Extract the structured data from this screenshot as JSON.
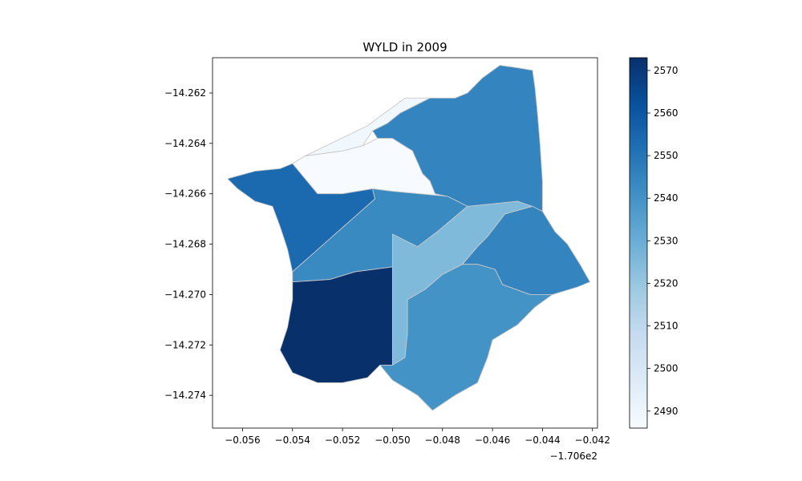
{
  "chart_data": {
    "type": "choropleth",
    "title": "WYLD in 2009",
    "xlabel": "",
    "ylabel": "",
    "xlim": [
      -0.0572,
      -0.0418
    ],
    "ylim": [
      -14.2753,
      -14.2606
    ],
    "x_ticks": [
      -0.056,
      -0.054,
      -0.052,
      -0.05,
      -0.048,
      -0.046,
      -0.044,
      -0.042
    ],
    "x_tick_labels": [
      "−0.056",
      "−0.054",
      "−0.052",
      "−0.050",
      "−0.048",
      "−0.046",
      "−0.044",
      "−0.042"
    ],
    "x_offset_label": "−1.706e2",
    "y_ticks": [
      -14.262,
      -14.264,
      -14.266,
      -14.268,
      -14.27,
      -14.272,
      -14.274
    ],
    "y_tick_labels": [
      "−14.262",
      "−14.264",
      "−14.266",
      "−14.268",
      "−14.270",
      "−14.272",
      "−14.274"
    ],
    "colormap": "Blues",
    "colorbar": {
      "min": 2486,
      "max": 2573,
      "ticks": [
        2490,
        2500,
        2510,
        2520,
        2530,
        2540,
        2550,
        2560,
        2570
      ],
      "tick_labels": [
        "2490",
        "2500",
        "2510",
        "2520",
        "2530",
        "2540",
        "2550",
        "2560",
        "2570"
      ]
    },
    "regions": [
      {
        "id": "subbasin-north-strip",
        "value": 2489,
        "coords": [
          [
            -0.0535,
            -14.2645
          ],
          [
            -0.051,
            -14.2633
          ],
          [
            -0.0495,
            -14.2622
          ],
          [
            -0.0485,
            -14.2622
          ],
          [
            -0.0497,
            -14.2628
          ],
          [
            -0.0502,
            -14.2632
          ],
          [
            -0.0508,
            -14.2635
          ],
          [
            -0.0512,
            -14.2641
          ],
          [
            -0.052,
            -14.2643
          ],
          [
            -0.0535,
            -14.2645
          ]
        ]
      },
      {
        "id": "subbasin-north-center",
        "value": 2486,
        "coords": [
          [
            -0.054,
            -14.2648
          ],
          [
            -0.0535,
            -14.2645
          ],
          [
            -0.052,
            -14.2643
          ],
          [
            -0.0512,
            -14.2641
          ],
          [
            -0.0506,
            -14.2638
          ],
          [
            -0.05,
            -14.2638
          ],
          [
            -0.0492,
            -14.2643
          ],
          [
            -0.0488,
            -14.2652
          ],
          [
            -0.0485,
            -14.2655
          ],
          [
            -0.0483,
            -14.266
          ],
          [
            -0.0478,
            -14.2661
          ],
          [
            -0.05,
            -14.2659
          ],
          [
            -0.0508,
            -14.2658
          ],
          [
            -0.052,
            -14.266
          ],
          [
            -0.053,
            -14.266
          ],
          [
            -0.054,
            -14.2648
          ]
        ]
      },
      {
        "id": "subbasin-northeast",
        "value": 2545,
        "coords": [
          [
            -0.0497,
            -14.2628
          ],
          [
            -0.0485,
            -14.2622
          ],
          [
            -0.0475,
            -14.2622
          ],
          [
            -0.047,
            -14.262
          ],
          [
            -0.0464,
            -14.2614
          ],
          [
            -0.0457,
            -14.2609
          ],
          [
            -0.045,
            -14.261
          ],
          [
            -0.0444,
            -14.2611
          ],
          [
            -0.0443,
            -14.2618
          ],
          [
            -0.0442,
            -14.2628
          ],
          [
            -0.0441,
            -14.264
          ],
          [
            -0.044,
            -14.2655
          ],
          [
            -0.044,
            -14.2667
          ],
          [
            -0.045,
            -14.2663
          ],
          [
            -0.046,
            -14.2664
          ],
          [
            -0.047,
            -14.2665
          ],
          [
            -0.0478,
            -14.2661
          ],
          [
            -0.0483,
            -14.266
          ],
          [
            -0.0485,
            -14.2655
          ],
          [
            -0.0488,
            -14.2652
          ],
          [
            -0.0492,
            -14.2643
          ],
          [
            -0.05,
            -14.2638
          ],
          [
            -0.0506,
            -14.2638
          ],
          [
            -0.0508,
            -14.2635
          ],
          [
            -0.0502,
            -14.2632
          ],
          [
            -0.0497,
            -14.2628
          ]
        ]
      },
      {
        "id": "subbasin-west",
        "value": 2554,
        "coords": [
          [
            -0.0566,
            -14.2654
          ],
          [
            -0.0555,
            -14.2651
          ],
          [
            -0.0545,
            -14.265
          ],
          [
            -0.054,
            -14.2648
          ],
          [
            -0.053,
            -14.266
          ],
          [
            -0.052,
            -14.266
          ],
          [
            -0.0508,
            -14.2658
          ],
          [
            -0.0507,
            -14.2662
          ],
          [
            -0.054,
            -14.2691
          ],
          [
            -0.0542,
            -14.2682
          ],
          [
            -0.0545,
            -14.2673
          ],
          [
            -0.0548,
            -14.2665
          ],
          [
            -0.0555,
            -14.2663
          ],
          [
            -0.0562,
            -14.2658
          ],
          [
            -0.0566,
            -14.2654
          ]
        ]
      },
      {
        "id": "subbasin-center",
        "value": 2543,
        "coords": [
          [
            -0.0507,
            -14.2662
          ],
          [
            -0.0508,
            -14.2658
          ],
          [
            -0.05,
            -14.2659
          ],
          [
            -0.0478,
            -14.2661
          ],
          [
            -0.047,
            -14.2665
          ],
          [
            -0.0482,
            -14.2675
          ],
          [
            -0.049,
            -14.2681
          ],
          [
            -0.0492,
            -14.2685
          ],
          [
            -0.05,
            -14.2689
          ],
          [
            -0.0515,
            -14.2691
          ],
          [
            -0.0525,
            -14.2694
          ],
          [
            -0.054,
            -14.2695
          ],
          [
            -0.054,
            -14.2691
          ],
          [
            -0.0507,
            -14.2662
          ]
        ]
      },
      {
        "id": "subbasin-central-strip",
        "value": 2525,
        "coords": [
          [
            -0.047,
            -14.2665
          ],
          [
            -0.046,
            -14.2664
          ],
          [
            -0.045,
            -14.2663
          ],
          [
            -0.0444,
            -14.2665
          ],
          [
            -0.0455,
            -14.2668
          ],
          [
            -0.0462,
            -14.2677
          ],
          [
            -0.0466,
            -14.2681
          ],
          [
            -0.0472,
            -14.2688
          ],
          [
            -0.048,
            -14.2692
          ],
          [
            -0.0487,
            -14.2698
          ],
          [
            -0.0494,
            -14.2702
          ],
          [
            -0.0494,
            -14.2715
          ],
          [
            -0.0495,
            -14.2725
          ],
          [
            -0.05,
            -14.2728
          ],
          [
            -0.05,
            -14.2712
          ],
          [
            -0.05,
            -14.269
          ],
          [
            -0.05,
            -14.2676
          ],
          [
            -0.049,
            -14.2681
          ],
          [
            -0.0482,
            -14.2675
          ],
          [
            -0.047,
            -14.2665
          ]
        ]
      },
      {
        "id": "subbasin-east",
        "value": 2545,
        "coords": [
          [
            -0.0444,
            -14.2665
          ],
          [
            -0.044,
            -14.2667
          ],
          [
            -0.0435,
            -14.2675
          ],
          [
            -0.043,
            -14.268
          ],
          [
            -0.0425,
            -14.2688
          ],
          [
            -0.0421,
            -14.2695
          ],
          [
            -0.0426,
            -14.2697
          ],
          [
            -0.0436,
            -14.27
          ],
          [
            -0.0445,
            -14.27
          ],
          [
            -0.0456,
            -14.2696
          ],
          [
            -0.0459,
            -14.269
          ],
          [
            -0.0466,
            -14.2688
          ],
          [
            -0.0472,
            -14.2688
          ],
          [
            -0.0466,
            -14.2681
          ],
          [
            -0.0462,
            -14.2677
          ],
          [
            -0.0455,
            -14.2668
          ],
          [
            -0.0444,
            -14.2665
          ]
        ]
      },
      {
        "id": "subbasin-south",
        "value": 2540,
        "coords": [
          [
            -0.0472,
            -14.2688
          ],
          [
            -0.0466,
            -14.2688
          ],
          [
            -0.0459,
            -14.269
          ],
          [
            -0.0456,
            -14.2696
          ],
          [
            -0.0445,
            -14.27
          ],
          [
            -0.0436,
            -14.27
          ],
          [
            -0.0443,
            -14.2705
          ],
          [
            -0.045,
            -14.2712
          ],
          [
            -0.046,
            -14.2718
          ],
          [
            -0.0462,
            -14.2725
          ],
          [
            -0.0466,
            -14.2735
          ],
          [
            -0.0475,
            -14.274
          ],
          [
            -0.0484,
            -14.2746
          ],
          [
            -0.049,
            -14.274
          ],
          [
            -0.05,
            -14.2734
          ],
          [
            -0.0505,
            -14.2728
          ],
          [
            -0.05,
            -14.2728
          ],
          [
            -0.0495,
            -14.2725
          ],
          [
            -0.0494,
            -14.2715
          ],
          [
            -0.0494,
            -14.2702
          ],
          [
            -0.0487,
            -14.2698
          ],
          [
            -0.048,
            -14.2692
          ],
          [
            -0.0472,
            -14.2688
          ]
        ]
      },
      {
        "id": "subbasin-southwest",
        "value": 2573,
        "coords": [
          [
            -0.054,
            -14.2695
          ],
          [
            -0.0525,
            -14.2694
          ],
          [
            -0.0515,
            -14.2691
          ],
          [
            -0.05,
            -14.2689
          ],
          [
            -0.05,
            -14.2712
          ],
          [
            -0.05,
            -14.2728
          ],
          [
            -0.0505,
            -14.2728
          ],
          [
            -0.051,
            -14.2733
          ],
          [
            -0.052,
            -14.2735
          ],
          [
            -0.053,
            -14.2735
          ],
          [
            -0.054,
            -14.2731
          ],
          [
            -0.0545,
            -14.2722
          ],
          [
            -0.0542,
            -14.2713
          ],
          [
            -0.054,
            -14.2702
          ],
          [
            -0.054,
            -14.2695
          ]
        ]
      }
    ]
  }
}
